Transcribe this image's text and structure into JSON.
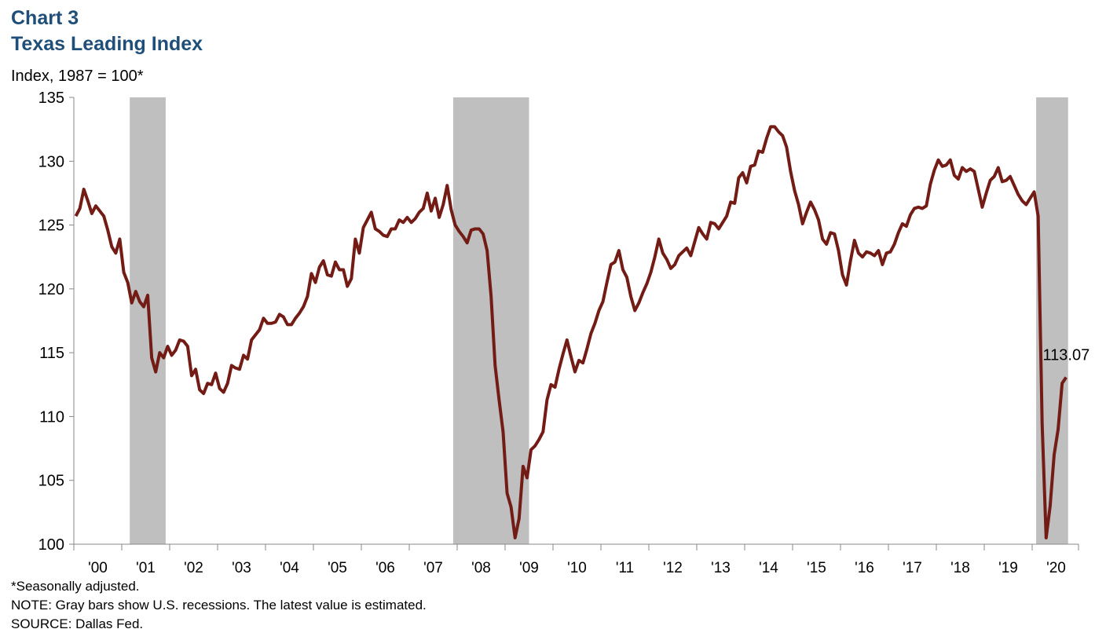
{
  "chart_data": {
    "type": "line",
    "title": "Chart 3",
    "subtitle": "Texas Leading Index",
    "ylabel": "Index, 1987 = 100*",
    "notes": [
      "*Seasonally adjusted.",
      "NOTE: Gray bars show U.S. recessions. The latest value is estimated.",
      "SOURCE: Dallas Fed."
    ],
    "categories": [
      null,
      null,
      null,
      null,
      null,
      null,
      "'00",
      null,
      null,
      null,
      null,
      null,
      null,
      null,
      null,
      null,
      null,
      null,
      "'01",
      null,
      null,
      null,
      null,
      null,
      null,
      null,
      null,
      null,
      null,
      null,
      "'02",
      null,
      null,
      null,
      null,
      null,
      null,
      null,
      null,
      null,
      null,
      null,
      "'03",
      null,
      null,
      null,
      null,
      null,
      null,
      null,
      null,
      null,
      null,
      null,
      "'04",
      null,
      null,
      null,
      null,
      null,
      null,
      null,
      null,
      null,
      null,
      null,
      "'05",
      null,
      null,
      null,
      null,
      null,
      null,
      null,
      null,
      null,
      null,
      null,
      "'06",
      null,
      null,
      null,
      null,
      null,
      null,
      null,
      null,
      null,
      null,
      null,
      "'07",
      null,
      null,
      null,
      null,
      null,
      null,
      null,
      null,
      null,
      null,
      null,
      "'08",
      null,
      null,
      null,
      null,
      null,
      null,
      null,
      null,
      null,
      null,
      null,
      "'09",
      null,
      null,
      null,
      null,
      null,
      null,
      null,
      null,
      null,
      null,
      null,
      "'10",
      null,
      null,
      null,
      null,
      null,
      null,
      null,
      null,
      null,
      null,
      null,
      "'11",
      null,
      null,
      null,
      null,
      null,
      null,
      null,
      null,
      null,
      null,
      null,
      "'12",
      null,
      null,
      null,
      null,
      null,
      null,
      null,
      null,
      null,
      null,
      null,
      "'13",
      null,
      null,
      null,
      null,
      null,
      null,
      null,
      null,
      null,
      null,
      null,
      "'14",
      null,
      null,
      null,
      null,
      null,
      null,
      null,
      null,
      null,
      null,
      null,
      "'15",
      null,
      null,
      null,
      null,
      null,
      null,
      null,
      null,
      null,
      null,
      null,
      "'16",
      null,
      null,
      null,
      null,
      null,
      null,
      null,
      null,
      null,
      null,
      null,
      "'17",
      null,
      null,
      null,
      null,
      null,
      null,
      null,
      null,
      null,
      null,
      null,
      "'18",
      null,
      null,
      null,
      null,
      null,
      null,
      null,
      null,
      null,
      null,
      null,
      "'19",
      null,
      null,
      null,
      null,
      null,
      null,
      null,
      null,
      null,
      null,
      null,
      "'20",
      null,
      null
    ],
    "series": [
      {
        "color": "#721c15",
        "values": [
          125.7,
          126.3,
          127.8,
          126.9,
          125.9,
          126.5,
          126.1,
          125.7,
          124.6,
          123.3,
          122.8,
          123.9,
          121.3,
          120.5,
          118.9,
          119.8,
          119.0,
          118.6,
          119.5,
          114.6,
          113.5,
          115.0,
          114.6,
          115.5,
          114.8,
          115.2,
          116.0,
          115.9,
          115.5,
          113.2,
          113.7,
          112.1,
          111.8,
          112.6,
          112.5,
          113.4,
          112.2,
          111.9,
          112.6,
          114.0,
          113.8,
          113.7,
          114.8,
          114.5,
          116.0,
          116.4,
          116.8,
          117.7,
          117.3,
          117.3,
          117.4,
          118.0,
          117.8,
          117.2,
          117.2,
          117.7,
          118.1,
          118.6,
          119.4,
          121.2,
          120.5,
          121.7,
          122.2,
          121.1,
          121.0,
          122.1,
          121.5,
          121.5,
          120.2,
          120.8,
          123.9,
          122.8,
          124.8,
          125.4,
          126.0,
          124.7,
          124.5,
          124.2,
          124.1,
          124.7,
          124.7,
          125.4,
          125.2,
          125.6,
          125.2,
          125.5,
          126.0,
          126.3,
          127.5,
          126.1,
          127.1,
          125.6,
          126.6,
          128.1,
          126.2,
          125.0,
          124.5,
          124.1,
          123.6,
          124.6,
          124.7,
          124.7,
          124.3,
          123.0,
          119.4,
          114.0,
          111.3,
          108.8,
          104.0,
          102.9,
          100.5,
          102.0,
          106.1,
          105.2,
          107.4,
          107.7,
          108.2,
          108.8,
          111.3,
          112.5,
          112.3,
          113.7,
          114.9,
          116.0,
          114.7,
          113.5,
          114.4,
          114.2,
          115.3,
          116.5,
          117.3,
          118.3,
          119.0,
          120.5,
          121.9,
          122.1,
          123.0,
          121.5,
          120.9,
          119.4,
          118.3,
          118.9,
          119.7,
          120.4,
          121.3,
          122.5,
          123.9,
          122.8,
          122.3,
          121.6,
          121.9,
          122.6,
          122.9,
          123.2,
          122.6,
          123.7,
          124.8,
          124.3,
          123.9,
          125.2,
          125.1,
          124.7,
          125.2,
          125.7,
          126.8,
          126.7,
          128.7,
          129.1,
          128.3,
          129.6,
          129.7,
          130.8,
          130.7,
          131.8,
          132.7,
          132.7,
          132.3,
          132.0,
          131.1,
          129.2,
          127.7,
          126.6,
          125.1,
          126.0,
          126.8,
          126.2,
          125.4,
          123.9,
          123.5,
          124.4,
          124.3,
          123.0,
          121.1,
          120.3,
          122.2,
          123.8,
          122.8,
          122.5,
          122.9,
          122.8,
          122.6,
          123.0,
          121.9,
          122.8,
          122.9,
          123.5,
          124.4,
          125.1,
          124.9,
          125.8,
          126.3,
          126.4,
          126.3,
          126.5,
          128.2,
          129.3,
          130.1,
          129.6,
          129.7,
          130.1,
          128.9,
          128.6,
          129.5,
          129.2,
          129.4,
          129.2,
          127.8,
          126.4,
          127.5,
          128.5,
          128.8,
          129.5,
          128.4,
          128.5,
          128.8,
          128.1,
          127.4,
          126.9,
          126.6,
          127.1,
          127.6,
          125.7,
          109.4,
          100.5,
          103.0,
          107.0,
          109.0,
          112.6,
          113.07
        ]
      }
    ],
    "shaded_ranges": [
      [
        14,
        22
      ],
      [
        95,
        113
      ],
      [
        241,
        248
      ]
    ],
    "shade_color": "#bfbfbf",
    "ylim": [
      100,
      135
    ],
    "yticks": [
      100,
      105,
      110,
      115,
      120,
      125,
      130,
      135
    ],
    "grid": false
  }
}
